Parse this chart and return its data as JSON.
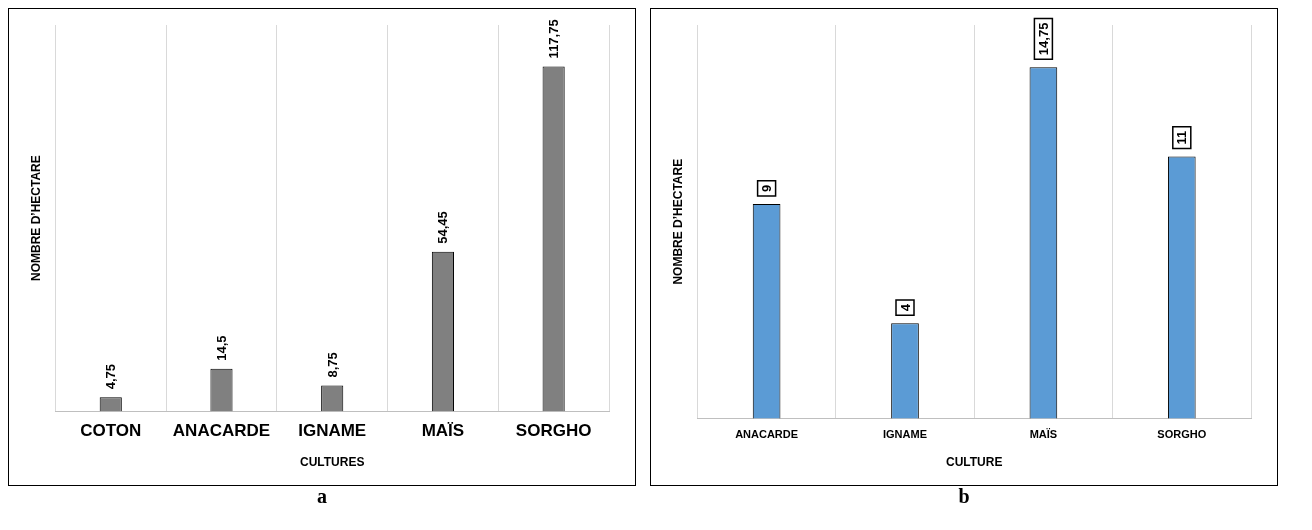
{
  "chart_data": [
    {
      "type": "bar",
      "categories": [
        "COTON",
        "ANACARDE",
        "IGNAME",
        "MAÏS",
        "SORGHO"
      ],
      "values": [
        4.75,
        14.5,
        8.75,
        54.45,
        117.75
      ],
      "color": "#808080",
      "value_labels": [
        "4,75",
        "14,5",
        "8,75",
        "54,45",
        "117,75"
      ],
      "xlabel": "CULTURES",
      "ylabel": "NOMBRE D’HECTARE",
      "grid": "x",
      "legend": false,
      "tick_labels": "x",
      "annotations": [
        "a"
      ]
    },
    {
      "type": "bar",
      "categories": [
        "ANACARDE",
        "IGNAME",
        "MAÏS",
        "SORGHO"
      ],
      "values": [
        9,
        4,
        14.75,
        11
      ],
      "color": "#5b9bd5",
      "value_labels": [
        "9",
        "4",
        "14,75",
        "11"
      ],
      "xlabel": "CULTURE",
      "ylabel": "NOMBRE D’HECTARE",
      "grid": "x",
      "legend": false,
      "tick_labels": "x",
      "annotations": [
        "b"
      ]
    }
  ]
}
